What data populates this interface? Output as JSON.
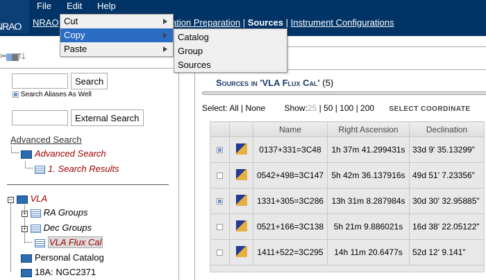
{
  "menubar": {
    "items": [
      "File",
      "Edit",
      "Help"
    ]
  },
  "logo": "NRAO",
  "nav": {
    "links": [
      "NRAO",
      "Observation Preparation"
    ],
    "current": "Sources",
    "last": "Instrument Configurations"
  },
  "edit_menu": {
    "items": [
      {
        "label": "Cut"
      },
      {
        "label": "Copy"
      },
      {
        "label": "Paste"
      }
    ]
  },
  "copy_submenu": {
    "items": [
      "Catalog",
      "Group",
      "Sources"
    ]
  },
  "toolbar": {
    "icons": [
      "cut-icon",
      "copy-icon",
      "paste-icon",
      "move-up-icon",
      "move-down-icon"
    ]
  },
  "search": {
    "button": "Search",
    "value": "",
    "aliases_label": "Search Aliases As Well",
    "aliases_checked": true,
    "external_button": "External Search"
  },
  "advanced": {
    "link": "Advanced Search",
    "node": "Advanced Search",
    "child": "1. Search Results"
  },
  "tree": {
    "root": "VLA",
    "children": [
      "RA Groups",
      "Dec Groups",
      "VLA Flux Cal"
    ],
    "others": [
      "Personal Catalog",
      "18A: NGC2371"
    ]
  },
  "main": {
    "title": "Sources in 'VLA Flux Cal'",
    "count": "(5)",
    "select_label": "Select:",
    "select_all": "All",
    "select_none": "None",
    "show_label": "Show:",
    "show_options": [
      "25",
      "50",
      "100",
      "200"
    ],
    "coords_label": "SELECT COORDINATE",
    "columns": [
      "",
      "",
      "Name",
      "Right Ascension",
      "Declination"
    ],
    "rows": [
      {
        "checked": true,
        "name": "0137+331=3C48",
        "ra": "1h 37m 41.299431s",
        "dec": "33d 9' 35.13299\""
      },
      {
        "checked": false,
        "name": "0542+498=3C147",
        "ra": "5h 42m 36.137916s",
        "dec": "49d 51' 7.23356\""
      },
      {
        "checked": true,
        "name": "1331+305=3C286",
        "ra": "13h 31m 8.287984s",
        "dec": "30d 30' 32.95885\""
      },
      {
        "checked": false,
        "name": "0521+166=3C138",
        "ra": "5h 21m 9.886021s",
        "dec": "16d 38' 22.05122\""
      },
      {
        "checked": false,
        "name": "1411+522=3C295",
        "ra": "14h 11m 20.6477s",
        "dec": "52d 12' 9.141\""
      }
    ]
  },
  "colors": {
    "header": "#003366",
    "selected": "#2b6cc4",
    "tree_link": "#a00000",
    "title": "#1a3a6a"
  }
}
